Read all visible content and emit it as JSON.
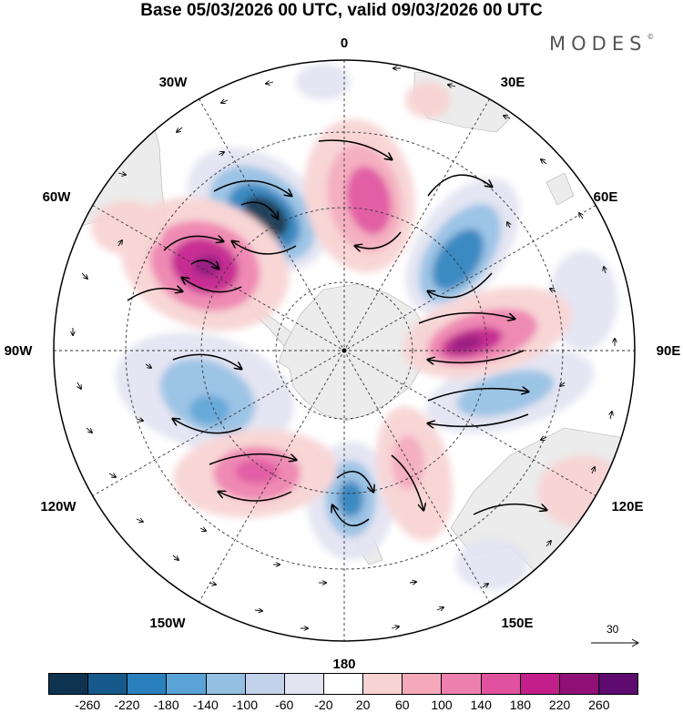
{
  "title": "Base 05/03/2026 00 UTC, valid 09/03/2026 00 UTC",
  "brand": "MODES",
  "brand_mark": "©",
  "longitude_labels": {
    "lon_0": "0",
    "lon_30e": "30E",
    "lon_60e": "60E",
    "lon_90e": "90E",
    "lon_120e": "120E",
    "lon_150e": "150E",
    "lon_180": "180",
    "lon_150w": "150W",
    "lon_120w": "120W",
    "lon_90w": "90W",
    "lon_60w": "60W",
    "lon_30w": "30W"
  },
  "reference_vector": {
    "label": "30"
  },
  "colorbar": {
    "colors": [
      "#0d3350",
      "#17598a",
      "#2a80bd",
      "#5aa3d6",
      "#94bfe3",
      "#c2d2ea",
      "#e3e3f2",
      "#ffffff",
      "#f8d3d3",
      "#f4a9bb",
      "#ee80ad",
      "#e0519f",
      "#c31f8a",
      "#901077",
      "#5e0a6f"
    ],
    "ticks": [
      "-260",
      "-220",
      "-180",
      "-140",
      "-100",
      "-60",
      "-20",
      "20",
      "60",
      "100",
      "140",
      "180",
      "220",
      "260"
    ]
  },
  "palette": {
    "neg_dark": "#0d3350",
    "neg_mid": "#2a80bd",
    "neg_light": "#c2d2ea",
    "pos_light": "#f8d3d3",
    "pos_mid": "#ee80ad",
    "pos_dark": "#901077",
    "land": "#ececec"
  }
}
